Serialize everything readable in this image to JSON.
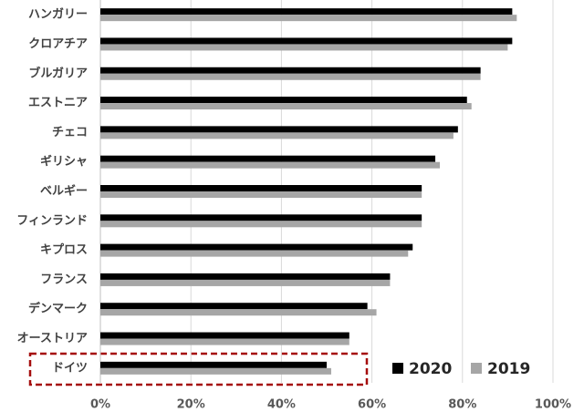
{
  "chart_data": {
    "type": "barh",
    "categories": [
      "ハンガリー",
      "クロアチア",
      "ブルガリア",
      "エストニア",
      "チェコ",
      "ギリシャ",
      "ベルギー",
      "フィンランド",
      "キプロス",
      "フランス",
      "デンマーク",
      "オーストリア",
      "ドイツ"
    ],
    "series": [
      {
        "name": "2020",
        "color": "#000000",
        "values": [
          91,
          91,
          84,
          81,
          79,
          74,
          71,
          71,
          69,
          64,
          59,
          55,
          50
        ]
      },
      {
        "name": "2019",
        "color": "#a6a6a6",
        "values": [
          92,
          90,
          84,
          82,
          78,
          75,
          71,
          71,
          68,
          64,
          61,
          55,
          51
        ]
      }
    ],
    "xlim": [
      0,
      100
    ],
    "xticks": [
      {
        "value": 0,
        "label": "0%"
      },
      {
        "value": 20,
        "label": "20%"
      },
      {
        "value": 40,
        "label": "40%"
      },
      {
        "value": 60,
        "label": "60%"
      },
      {
        "value": 80,
        "label": "80%"
      },
      {
        "value": 100,
        "label": "100%"
      }
    ],
    "grid": true,
    "legend": "lower right"
  }
}
